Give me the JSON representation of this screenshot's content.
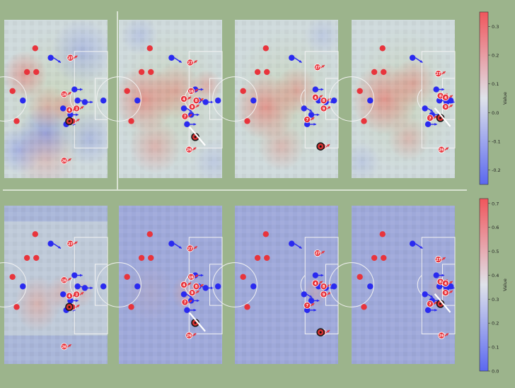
{
  "colors": {
    "background": "#9cb48c",
    "pitch_neutral": "#d2dce0",
    "team_red": "#e8343c",
    "team_blue": "#2a2af0",
    "line": "#f2f2f2",
    "cbar_low": "#5b68f0",
    "cbar_mid": "#dfe3ea",
    "cbar_high": "#f0565c"
  },
  "chart_data": {
    "type": "heatmap",
    "layout": "2 rows x 4 panels, soccer pitch value maps with player positions",
    "rows": [
      {
        "name": "top",
        "colorbar": {
          "label": "Value",
          "ticks": [
            0.3,
            0.2,
            0.1,
            0.0,
            -0.1,
            -0.2
          ],
          "tick_labels": [
            "0.3",
            "0.2",
            "0.1",
            "0.0",
            "-0.1",
            "-0.2"
          ],
          "range": [
            -0.25,
            0.35
          ]
        }
      },
      {
        "name": "bottom",
        "colorbar": {
          "label": "Value",
          "ticks": [
            0.7,
            0.6,
            0.5,
            0.4,
            0.3,
            0.2,
            0.1,
            0.0
          ],
          "tick_labels": [
            "0.7",
            "0.6",
            "0.5",
            "0.4",
            "0.3",
            "0.2",
            "0.1",
            "0.0"
          ],
          "range": [
            0.0,
            0.72
          ]
        }
      }
    ],
    "players_red": [
      {
        "x": 0.3,
        "y": 0.18
      },
      {
        "x": 0.22,
        "y": 0.33
      },
      {
        "x": 0.31,
        "y": 0.33
      },
      {
        "x": 0.08,
        "y": 0.45
      },
      {
        "x": 0.12,
        "y": 0.64
      }
    ],
    "players_blue": [
      {
        "x": 0.45,
        "y": 0.24,
        "dx": 0.07,
        "dy": 0.03
      },
      {
        "x": 0.68,
        "y": 0.44,
        "dx": 0.05,
        "dy": 0.0
      },
      {
        "x": 0.71,
        "y": 0.51,
        "dx": 0.05,
        "dy": 0.01
      },
      {
        "x": 0.78,
        "y": 0.52,
        "dx": 0.05,
        "dy": 0.0
      },
      {
        "x": 0.57,
        "y": 0.56,
        "dx": 0.05,
        "dy": 0.02
      },
      {
        "x": 0.64,
        "y": 0.6,
        "dx": 0.05,
        "dy": 0.0
      },
      {
        "x": 0.6,
        "y": 0.66,
        "dx": 0.06,
        "dy": 0.0
      },
      {
        "x": 0.96,
        "y": 0.51,
        "dx": 0.0,
        "dy": 0.0
      },
      {
        "x": 0.18,
        "y": 0.51,
        "dx": 0.0,
        "dy": 0.0
      }
    ],
    "panels_top": [
      {
        "offset": 0.0,
        "labeled_red": [
          {
            "label": "27",
            "x": 0.64,
            "y": 0.24
          },
          {
            "label": "16",
            "x": 0.58,
            "y": 0.47
          },
          {
            "label": "8",
            "x": 0.7,
            "y": 0.56
          },
          {
            "label": "4",
            "x": 0.63,
            "y": 0.57
          },
          {
            "label": "9",
            "x": 0.66,
            "y": 0.64
          },
          {
            "label": "26",
            "x": 0.58,
            "y": 0.89
          }
        ],
        "heat_red": [
          {
            "x": 0.2,
            "y": 0.35,
            "r": 0.22,
            "v": 0.5
          },
          {
            "x": 0.42,
            "y": 0.55,
            "r": 0.2,
            "v": 0.35
          },
          {
            "x": 0.6,
            "y": 0.55,
            "r": 0.14,
            "v": 0.4
          },
          {
            "x": 0.4,
            "y": 0.88,
            "r": 0.3,
            "v": 0.25
          }
        ],
        "heat_blue": [
          {
            "x": 0.4,
            "y": 0.72,
            "r": 0.26,
            "v": 0.6
          },
          {
            "x": 0.75,
            "y": 0.2,
            "r": 0.3,
            "v": 0.35
          },
          {
            "x": 0.15,
            "y": 0.82,
            "r": 0.22,
            "v": 0.45
          },
          {
            "x": 0.82,
            "y": 0.75,
            "r": 0.25,
            "v": 0.35
          }
        ],
        "ball": {
          "x": 0.63,
          "y": 0.64
        },
        "white_arrow": false
      },
      {
        "offset": 0.06,
        "labeled_red": [
          {
            "label": "27",
            "x": 0.69,
            "y": 0.27
          },
          {
            "label": "16",
            "x": 0.7,
            "y": 0.45
          },
          {
            "label": "4",
            "x": 0.63,
            "y": 0.5
          },
          {
            "label": "8",
            "x": 0.75,
            "y": 0.51
          },
          {
            "label": "9",
            "x": 0.71,
            "y": 0.55
          },
          {
            "label": "7",
            "x": 0.64,
            "y": 0.61
          },
          {
            "label": "26",
            "x": 0.68,
            "y": 0.82
          }
        ],
        "heat_red": [
          {
            "x": 0.25,
            "y": 0.5,
            "r": 0.3,
            "v": 0.6
          },
          {
            "x": 0.55,
            "y": 0.45,
            "r": 0.25,
            "v": 0.45
          },
          {
            "x": 0.85,
            "y": 0.42,
            "r": 0.15,
            "v": 0.4
          },
          {
            "x": 0.35,
            "y": 0.8,
            "r": 0.25,
            "v": 0.35
          }
        ],
        "heat_blue": [
          {
            "x": 0.2,
            "y": 0.1,
            "r": 0.18,
            "v": 0.25
          },
          {
            "x": 0.92,
            "y": 0.9,
            "r": 0.2,
            "v": 0.2
          }
        ],
        "ball": {
          "x": 0.74,
          "y": 0.74
        },
        "white_arrow": true
      },
      {
        "offset": 0.1,
        "labeled_red": [
          {
            "label": "27",
            "x": 0.8,
            "y": 0.3
          },
          {
            "label": "4",
            "x": 0.78,
            "y": 0.49
          },
          {
            "label": "8",
            "x": 0.86,
            "y": 0.51
          },
          {
            "label": "9",
            "x": 0.86,
            "y": 0.56
          },
          {
            "label": "7",
            "x": 0.7,
            "y": 0.63
          },
          {
            "label": "26",
            "x": 0.85,
            "y": 0.8
          }
        ],
        "heat_red": [
          {
            "x": 0.3,
            "y": 0.55,
            "r": 0.3,
            "v": 0.6
          },
          {
            "x": 0.6,
            "y": 0.45,
            "r": 0.22,
            "v": 0.45
          },
          {
            "x": 0.45,
            "y": 0.8,
            "r": 0.22,
            "v": 0.3
          }
        ],
        "heat_blue": [
          {
            "x": 0.85,
            "y": 0.1,
            "r": 0.18,
            "v": 0.2
          }
        ],
        "ball": {
          "x": 0.83,
          "y": 0.8
        },
        "white_arrow": false
      },
      {
        "offset": 0.14,
        "labeled_red": [
          {
            "label": "27",
            "x": 0.84,
            "y": 0.34
          },
          {
            "label": "8",
            "x": 0.86,
            "y": 0.48
          },
          {
            "label": "4",
            "x": 0.91,
            "y": 0.49
          },
          {
            "label": "9",
            "x": 0.91,
            "y": 0.55
          },
          {
            "label": "7",
            "x": 0.76,
            "y": 0.62
          },
          {
            "label": "26",
            "x": 0.87,
            "y": 0.82
          }
        ],
        "heat_red": [
          {
            "x": 0.32,
            "y": 0.5,
            "r": 0.32,
            "v": 0.6
          },
          {
            "x": 0.6,
            "y": 0.4,
            "r": 0.22,
            "v": 0.45
          },
          {
            "x": 0.55,
            "y": 0.75,
            "r": 0.2,
            "v": 0.3
          }
        ],
        "heat_blue": [
          {
            "x": 0.1,
            "y": 0.9,
            "r": 0.18,
            "v": 0.2
          }
        ],
        "ball": {
          "x": 0.86,
          "y": 0.62
        },
        "white_arrow": true
      }
    ],
    "panels_bottom": [
      {
        "heat_hot": [
          {
            "x": 0.32,
            "y": 0.62,
            "r": 0.22,
            "v": 0.55
          },
          {
            "x": 0.55,
            "y": 0.55,
            "r": 0.14,
            "v": 0.45
          },
          {
            "x": 0.75,
            "y": 0.55,
            "r": 0.12,
            "v": 0.35
          }
        ]
      },
      {
        "heat_hot": [
          {
            "x": 0.65,
            "y": 0.55,
            "r": 0.14,
            "v": 0.45
          },
          {
            "x": 0.3,
            "y": 0.55,
            "r": 0.25,
            "v": 0.15
          }
        ]
      },
      {
        "heat_hot": [
          {
            "x": 0.78,
            "y": 0.55,
            "r": 0.12,
            "v": 0.35
          }
        ]
      },
      {
        "heat_hot": [
          {
            "x": 0.85,
            "y": 0.52,
            "r": 0.12,
            "v": 0.35
          }
        ]
      }
    ]
  }
}
